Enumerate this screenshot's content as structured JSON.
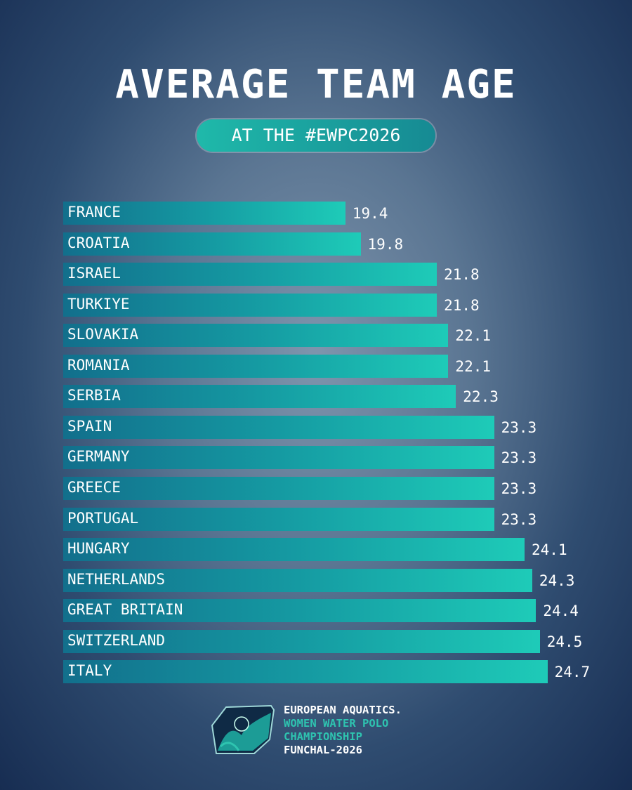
{
  "chart_data": {
    "type": "bar",
    "orientation": "horizontal",
    "title": "AVERAGE TEAM AGE",
    "subtitle": "AT THE #EWPC2026",
    "categories": [
      "FRANCE",
      "CROATIA",
      "ISRAEL",
      "TURKIYE",
      "SLOVAKIA",
      "ROMANIA",
      "SERBIA",
      "SPAIN",
      "GERMANY",
      "GREECE",
      "PORTUGAL",
      "HUNGARY",
      "NETHERLANDS",
      "GREAT BRITAIN",
      "SWITZERLAND",
      "ITALY"
    ],
    "values": [
      19.4,
      19.8,
      21.8,
      21.8,
      22.1,
      22.1,
      22.3,
      23.3,
      23.3,
      23.3,
      23.3,
      24.1,
      24.3,
      24.4,
      24.5,
      24.7
    ],
    "value_labels": [
      "19.4",
      "19.8",
      "21.8",
      "21.8",
      "22.1",
      "22.1",
      "22.3",
      "23.3",
      "23.3",
      "23.3",
      "23.3",
      "24.1",
      "24.3",
      "24.4",
      "24.5",
      "24.7"
    ],
    "xlim": [
      12,
      25
    ],
    "grid": false,
    "xlabel": "",
    "ylabel": ""
  },
  "footer": {
    "line1": "EUROPEAN AQUATICS.",
    "line2": "WOMEN WATER POLO",
    "line3": "CHAMPIONSHIP",
    "line4": "FUNCHAL-2026"
  },
  "colors": {
    "bar_start": "#126f8c",
    "bar_end": "#1ecbb8",
    "accent": "#2ec4b0"
  }
}
